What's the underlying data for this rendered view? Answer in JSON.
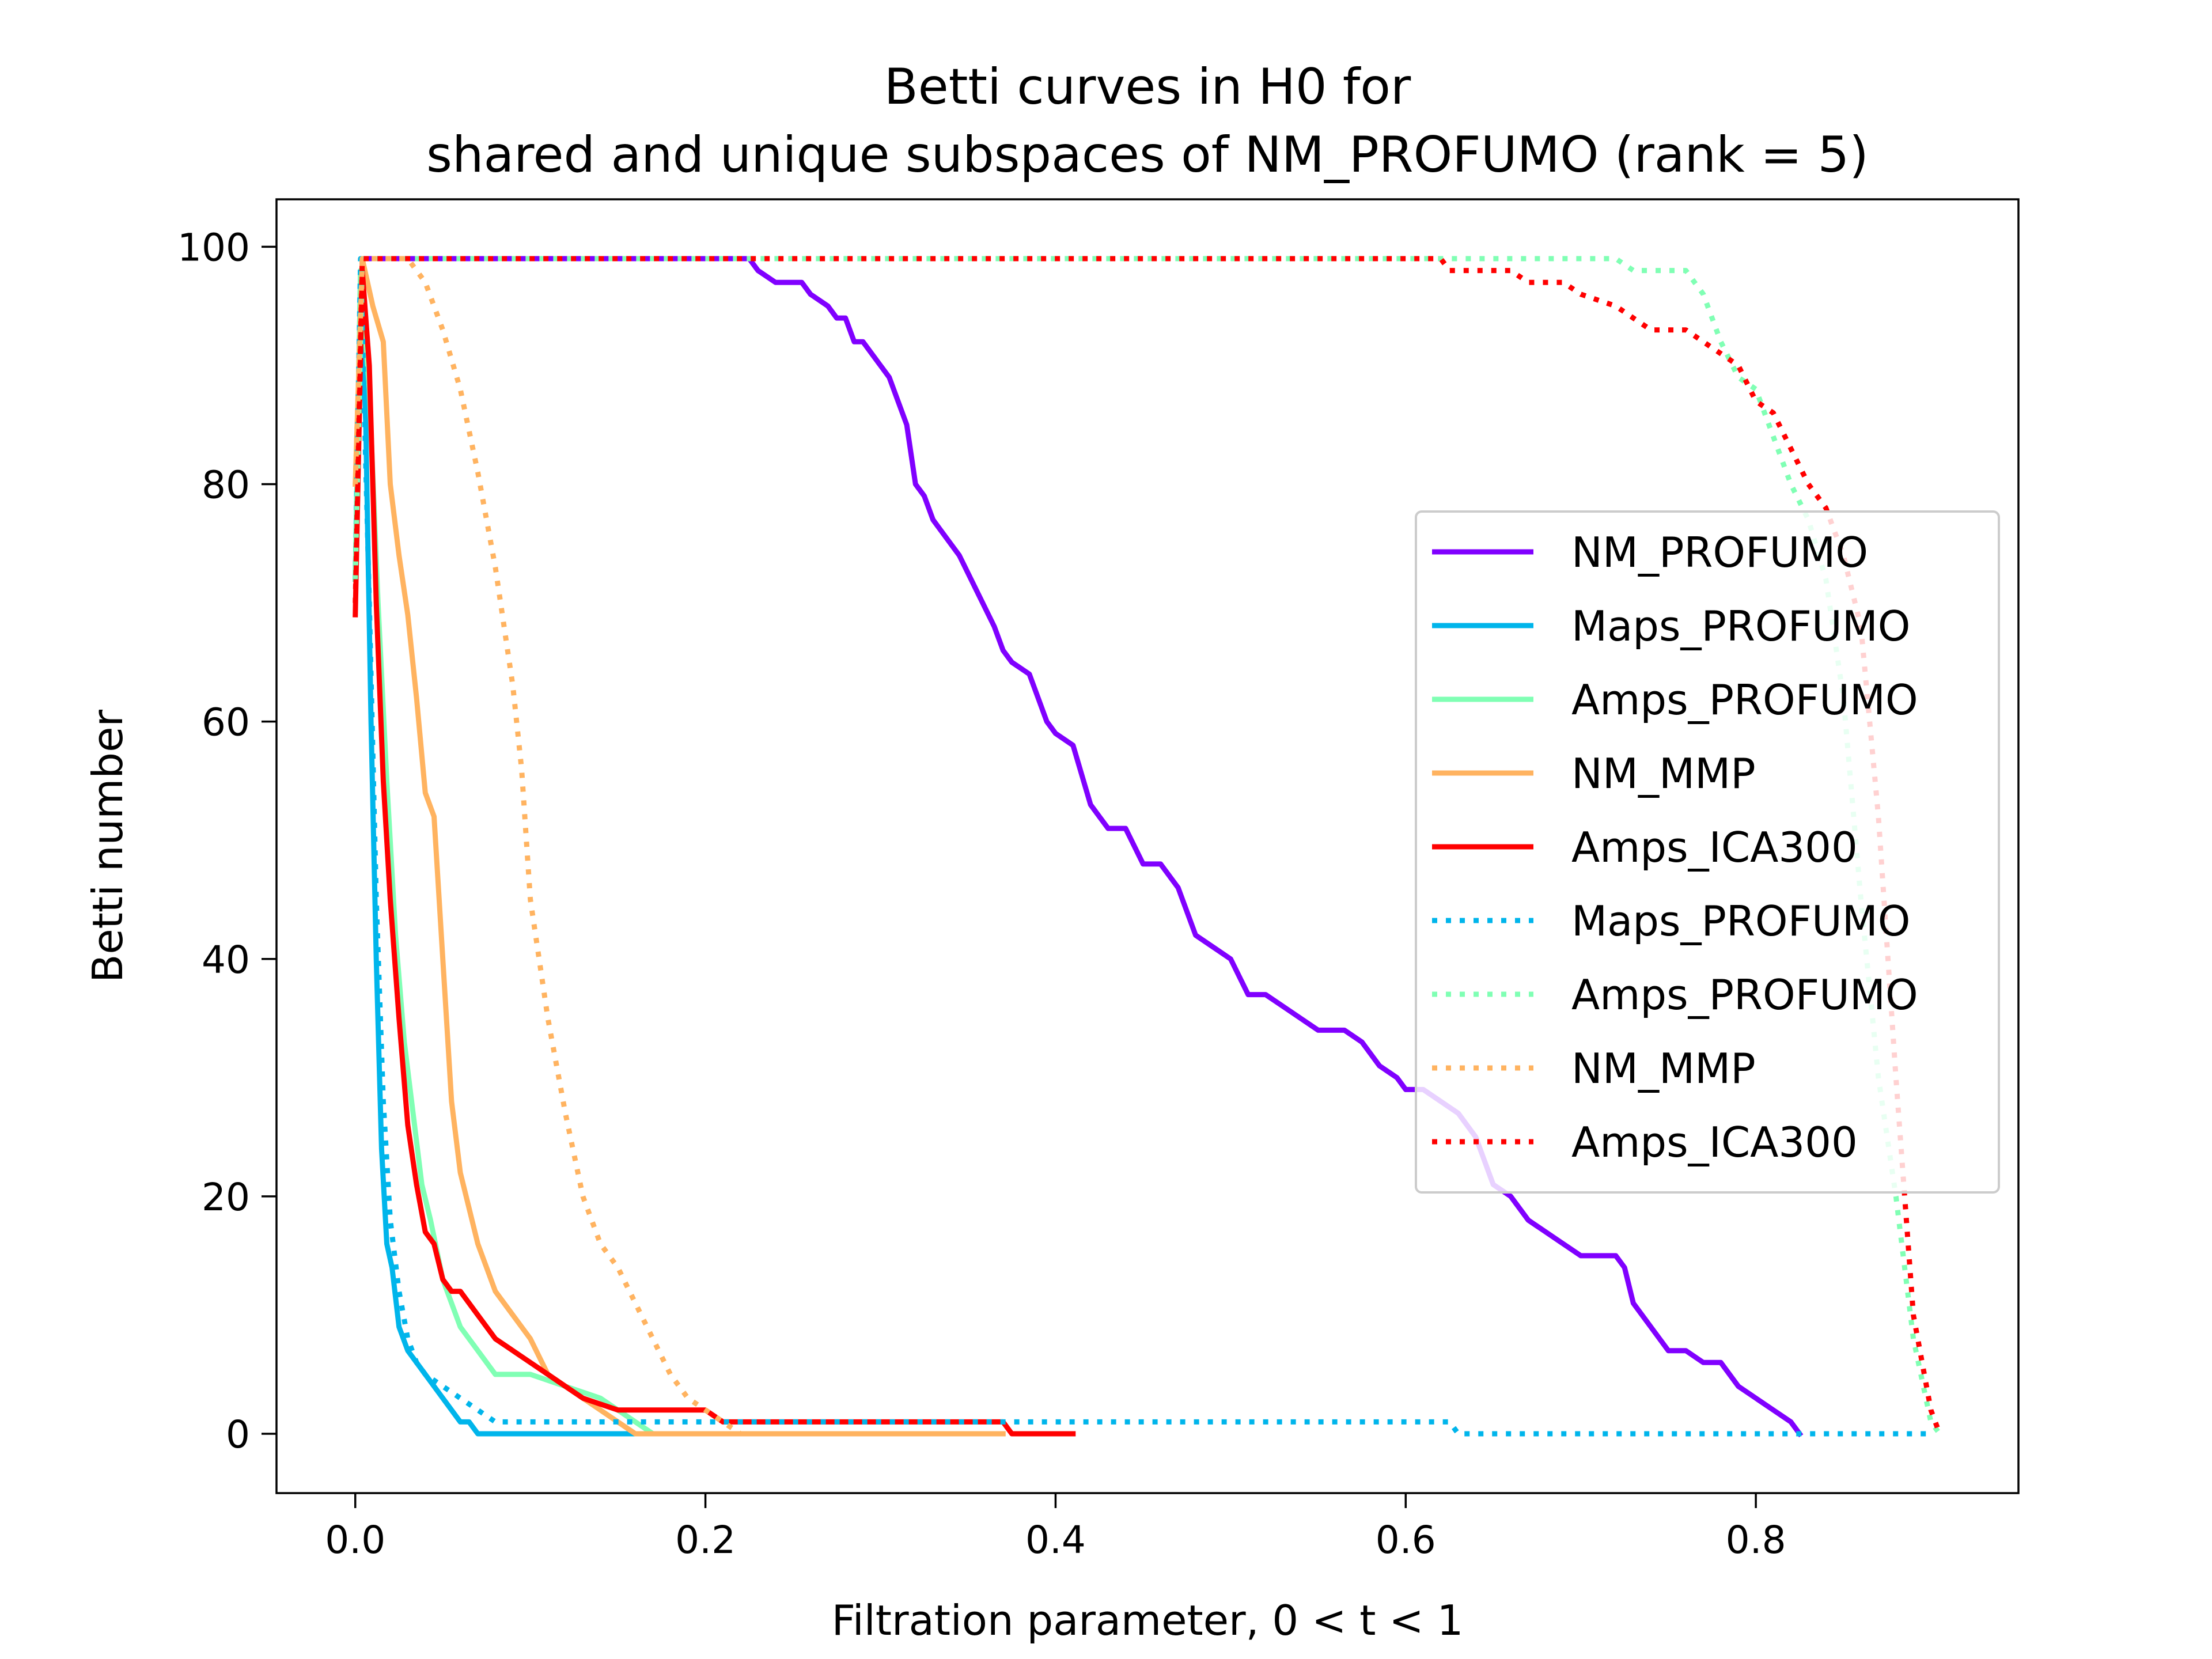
{
  "chart_data": {
    "type": "line",
    "title_lines": [
      "Betti curves in H0 for",
      "shared and unique subspaces of NM_PROFUMO (rank = 5)"
    ],
    "xlabel": "Filtration parameter, 0 < t < 1",
    "ylabel": "Betti number",
    "xlim": [
      -0.045,
      0.95
    ],
    "ylim": [
      -5,
      104
    ],
    "xticks": [
      0.0,
      0.2,
      0.4,
      0.6,
      0.8
    ],
    "xtick_labels": [
      "0.0",
      "0.2",
      "0.4",
      "0.6",
      "0.8"
    ],
    "yticks": [
      0,
      20,
      40,
      60,
      80,
      100
    ],
    "ytick_labels": [
      "0",
      "20",
      "40",
      "60",
      "80",
      "100"
    ],
    "grid": false,
    "legend_position": "center-right",
    "series": [
      {
        "name": "NM_PROFUMO",
        "style": "solid",
        "color": "#8000ff",
        "points": [
          [
            0.0,
            72
          ],
          [
            0.004,
            99
          ],
          [
            0.225,
            99
          ],
          [
            0.23,
            98
          ],
          [
            0.24,
            97
          ],
          [
            0.255,
            97
          ],
          [
            0.26,
            96
          ],
          [
            0.27,
            95
          ],
          [
            0.275,
            94
          ],
          [
            0.28,
            94
          ],
          [
            0.285,
            92
          ],
          [
            0.29,
            92
          ],
          [
            0.295,
            91
          ],
          [
            0.3,
            90
          ],
          [
            0.305,
            89
          ],
          [
            0.31,
            87
          ],
          [
            0.315,
            85
          ],
          [
            0.32,
            80
          ],
          [
            0.325,
            79
          ],
          [
            0.33,
            77
          ],
          [
            0.335,
            76
          ],
          [
            0.345,
            74
          ],
          [
            0.355,
            71
          ],
          [
            0.365,
            68
          ],
          [
            0.37,
            66
          ],
          [
            0.375,
            65
          ],
          [
            0.385,
            64
          ],
          [
            0.39,
            62
          ],
          [
            0.395,
            60
          ],
          [
            0.4,
            59
          ],
          [
            0.41,
            58
          ],
          [
            0.42,
            53
          ],
          [
            0.43,
            51
          ],
          [
            0.44,
            51
          ],
          [
            0.45,
            48
          ],
          [
            0.46,
            48
          ],
          [
            0.465,
            47
          ],
          [
            0.47,
            46
          ],
          [
            0.48,
            42
          ],
          [
            0.49,
            41
          ],
          [
            0.5,
            40
          ],
          [
            0.51,
            37
          ],
          [
            0.52,
            37
          ],
          [
            0.53,
            36
          ],
          [
            0.54,
            35
          ],
          [
            0.55,
            34
          ],
          [
            0.565,
            34
          ],
          [
            0.575,
            33
          ],
          [
            0.585,
            31
          ],
          [
            0.595,
            30
          ],
          [
            0.6,
            29
          ],
          [
            0.61,
            29
          ],
          [
            0.62,
            28
          ],
          [
            0.63,
            27
          ],
          [
            0.64,
            25
          ],
          [
            0.645,
            23
          ],
          [
            0.65,
            21
          ],
          [
            0.66,
            20
          ],
          [
            0.67,
            18
          ],
          [
            0.68,
            17
          ],
          [
            0.69,
            16
          ],
          [
            0.7,
            15
          ],
          [
            0.72,
            15
          ],
          [
            0.725,
            14
          ],
          [
            0.73,
            11
          ],
          [
            0.74,
            9
          ],
          [
            0.75,
            7
          ],
          [
            0.76,
            7
          ],
          [
            0.77,
            6
          ],
          [
            0.78,
            6
          ],
          [
            0.79,
            4
          ],
          [
            0.8,
            3
          ],
          [
            0.81,
            2
          ],
          [
            0.82,
            1
          ],
          [
            0.825,
            0
          ]
        ]
      },
      {
        "name": "Maps_PROFUMO",
        "style": "solid",
        "color": "#00b5eb",
        "points": [
          [
            0.0,
            72
          ],
          [
            0.003,
            98
          ],
          [
            0.006,
            85
          ],
          [
            0.009,
            60
          ],
          [
            0.012,
            40
          ],
          [
            0.015,
            24
          ],
          [
            0.018,
            16
          ],
          [
            0.021,
            14
          ],
          [
            0.025,
            9
          ],
          [
            0.03,
            7
          ],
          [
            0.035,
            6
          ],
          [
            0.04,
            5
          ],
          [
            0.045,
            4
          ],
          [
            0.05,
            3
          ],
          [
            0.055,
            2
          ],
          [
            0.06,
            1
          ],
          [
            0.065,
            1
          ],
          [
            0.07,
            0
          ],
          [
            0.16,
            0
          ]
        ]
      },
      {
        "name": "Amps_PROFUMO",
        "style": "solid",
        "color": "#80ffb4",
        "points": [
          [
            0.0,
            72
          ],
          [
            0.003,
            98
          ],
          [
            0.008,
            88
          ],
          [
            0.013,
            70
          ],
          [
            0.018,
            55
          ],
          [
            0.023,
            42
          ],
          [
            0.028,
            33
          ],
          [
            0.033,
            27
          ],
          [
            0.038,
            21
          ],
          [
            0.043,
            18
          ],
          [
            0.05,
            13
          ],
          [
            0.06,
            9
          ],
          [
            0.07,
            7
          ],
          [
            0.08,
            5
          ],
          [
            0.1,
            5
          ],
          [
            0.12,
            4
          ],
          [
            0.14,
            3
          ],
          [
            0.15,
            2
          ],
          [
            0.16,
            1
          ],
          [
            0.17,
            0
          ],
          [
            0.2,
            0
          ]
        ]
      },
      {
        "name": "NM_MMP",
        "style": "solid",
        "color": "#ffb360",
        "points": [
          [
            0.0,
            80
          ],
          [
            0.004,
            99
          ],
          [
            0.01,
            95
          ],
          [
            0.016,
            92
          ],
          [
            0.02,
            80
          ],
          [
            0.025,
            74
          ],
          [
            0.03,
            69
          ],
          [
            0.035,
            62
          ],
          [
            0.04,
            54
          ],
          [
            0.045,
            52
          ],
          [
            0.05,
            40
          ],
          [
            0.055,
            28
          ],
          [
            0.06,
            22
          ],
          [
            0.07,
            16
          ],
          [
            0.08,
            12
          ],
          [
            0.09,
            10
          ],
          [
            0.095,
            9
          ],
          [
            0.1,
            8
          ],
          [
            0.11,
            5
          ],
          [
            0.12,
            4
          ],
          [
            0.13,
            3
          ],
          [
            0.14,
            2
          ],
          [
            0.15,
            1
          ],
          [
            0.16,
            0
          ],
          [
            0.37,
            0
          ]
        ]
      },
      {
        "name": "Amps_ICA300",
        "style": "solid",
        "color": "#ff0000",
        "points": [
          [
            0.0,
            69
          ],
          [
            0.004,
            98
          ],
          [
            0.008,
            90
          ],
          [
            0.012,
            70
          ],
          [
            0.016,
            55
          ],
          [
            0.02,
            45
          ],
          [
            0.025,
            35
          ],
          [
            0.03,
            26
          ],
          [
            0.035,
            21
          ],
          [
            0.04,
            17
          ],
          [
            0.045,
            16
          ],
          [
            0.05,
            13
          ],
          [
            0.055,
            12
          ],
          [
            0.06,
            12
          ],
          [
            0.07,
            10
          ],
          [
            0.08,
            8
          ],
          [
            0.09,
            7
          ],
          [
            0.1,
            6
          ],
          [
            0.11,
            5
          ],
          [
            0.12,
            4
          ],
          [
            0.13,
            3
          ],
          [
            0.15,
            2
          ],
          [
            0.2,
            2
          ],
          [
            0.21,
            1
          ],
          [
            0.37,
            1
          ],
          [
            0.375,
            0
          ],
          [
            0.41,
            0
          ]
        ]
      },
      {
        "name": "Maps_PROFUMO",
        "style": "dotted",
        "color": "#00b5eb",
        "points": [
          [
            0.0,
            72
          ],
          [
            0.003,
            99
          ],
          [
            0.008,
            70
          ],
          [
            0.012,
            45
          ],
          [
            0.016,
            28
          ],
          [
            0.02,
            18
          ],
          [
            0.025,
            12
          ],
          [
            0.03,
            8
          ],
          [
            0.035,
            6
          ],
          [
            0.04,
            5
          ],
          [
            0.05,
            4
          ],
          [
            0.06,
            3
          ],
          [
            0.07,
            2
          ],
          [
            0.08,
            1
          ],
          [
            0.625,
            1
          ],
          [
            0.63,
            0
          ],
          [
            0.9,
            0
          ]
        ]
      },
      {
        "name": "Amps_PROFUMO",
        "style": "dotted",
        "color": "#80ffb4",
        "points": [
          [
            0.0,
            72
          ],
          [
            0.004,
            99
          ],
          [
            0.72,
            99
          ],
          [
            0.73,
            98
          ],
          [
            0.76,
            98
          ],
          [
            0.77,
            96
          ],
          [
            0.78,
            92
          ],
          [
            0.79,
            89
          ],
          [
            0.8,
            88
          ],
          [
            0.805,
            86
          ],
          [
            0.81,
            84
          ],
          [
            0.82,
            80
          ],
          [
            0.83,
            77
          ],
          [
            0.84,
            72
          ],
          [
            0.85,
            62
          ],
          [
            0.86,
            45
          ],
          [
            0.87,
            30
          ],
          [
            0.88,
            20
          ],
          [
            0.89,
            8
          ],
          [
            0.9,
            1
          ],
          [
            0.905,
            0
          ]
        ]
      },
      {
        "name": "NM_MMP",
        "style": "dotted",
        "color": "#ffb360",
        "points": [
          [
            0.0,
            80
          ],
          [
            0.004,
            99
          ],
          [
            0.03,
            99
          ],
          [
            0.04,
            97
          ],
          [
            0.05,
            93
          ],
          [
            0.06,
            88
          ],
          [
            0.07,
            81
          ],
          [
            0.08,
            73
          ],
          [
            0.09,
            63
          ],
          [
            0.095,
            56
          ],
          [
            0.1,
            45
          ],
          [
            0.11,
            35
          ],
          [
            0.12,
            27
          ],
          [
            0.13,
            20
          ],
          [
            0.14,
            16
          ],
          [
            0.15,
            14
          ],
          [
            0.16,
            11
          ],
          [
            0.17,
            8
          ],
          [
            0.18,
            5
          ],
          [
            0.19,
            3
          ],
          [
            0.2,
            2
          ],
          [
            0.21,
            1
          ],
          [
            0.22,
            0
          ]
        ]
      },
      {
        "name": "Amps_ICA300",
        "style": "dotted",
        "color": "#ff0000",
        "points": [
          [
            0.0,
            70
          ],
          [
            0.004,
            99
          ],
          [
            0.62,
            99
          ],
          [
            0.625,
            98
          ],
          [
            0.66,
            98
          ],
          [
            0.67,
            97
          ],
          [
            0.69,
            97
          ],
          [
            0.7,
            96
          ],
          [
            0.72,
            95
          ],
          [
            0.73,
            94
          ],
          [
            0.74,
            93
          ],
          [
            0.76,
            93
          ],
          [
            0.77,
            92
          ],
          [
            0.78,
            91
          ],
          [
            0.79,
            90
          ],
          [
            0.8,
            87
          ],
          [
            0.81,
            86
          ],
          [
            0.82,
            83
          ],
          [
            0.83,
            80
          ],
          [
            0.84,
            78
          ],
          [
            0.85,
            74
          ],
          [
            0.86,
            68
          ],
          [
            0.87,
            52
          ],
          [
            0.88,
            30
          ],
          [
            0.89,
            10
          ],
          [
            0.9,
            2
          ],
          [
            0.905,
            0
          ]
        ]
      }
    ]
  }
}
